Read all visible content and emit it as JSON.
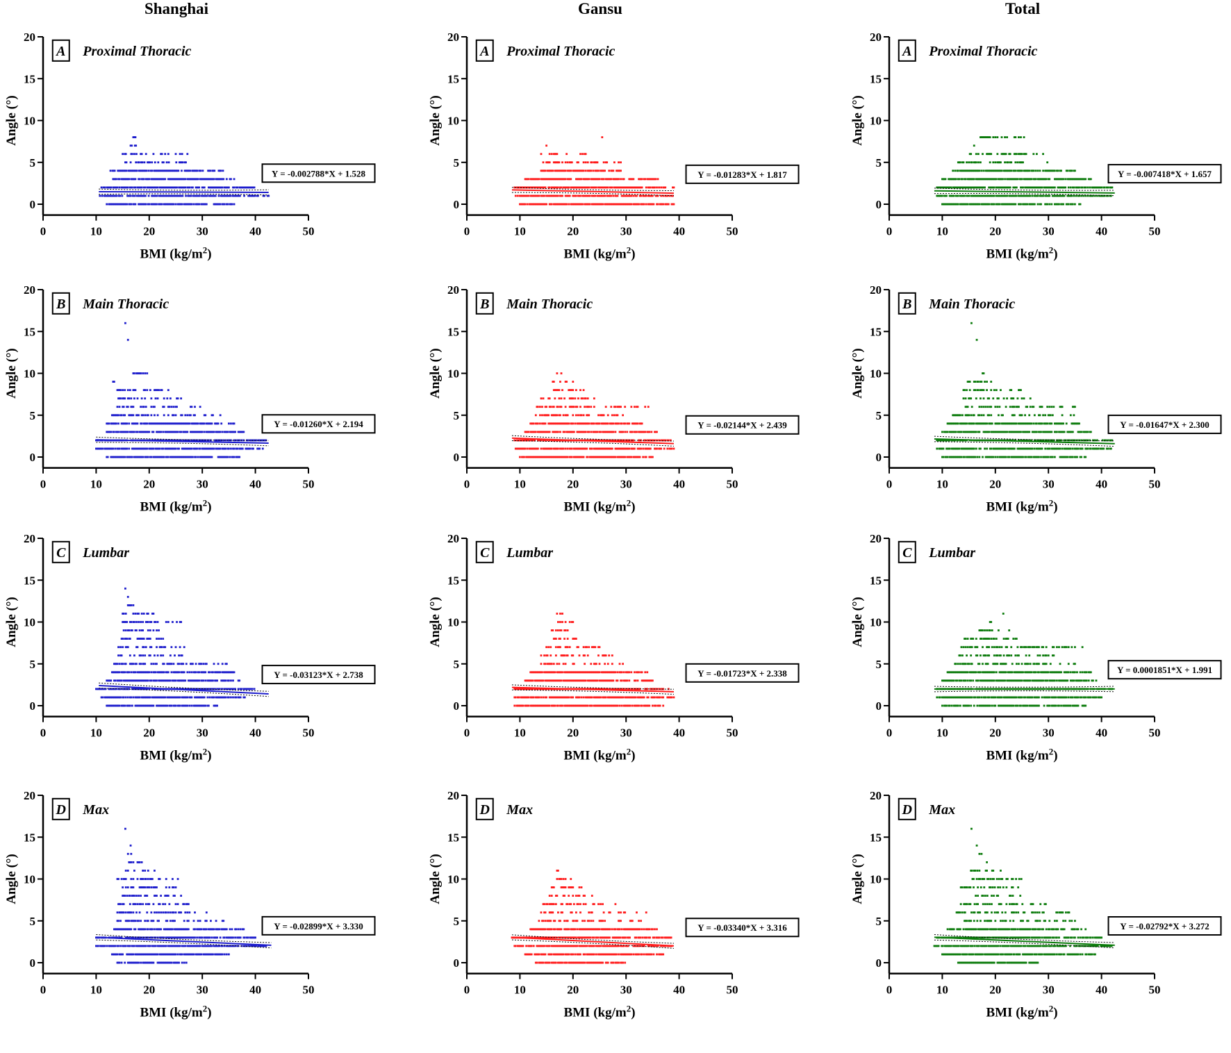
{
  "columns": [
    "Shanghai",
    "Gansu",
    "Total"
  ],
  "colors": {
    "Shanghai": "#1c1ccc",
    "Gansu": "#ff1a1a",
    "Total": "#0a7a0a"
  },
  "chart_data": [
    {
      "type": "scatter",
      "column": "Shanghai",
      "letter": "A",
      "title": "Proximal Thoracic",
      "xlabel": "BMI (kg/m2)",
      "ylabel": "Angle (°)",
      "xlim": [
        0,
        50
      ],
      "ylim": [
        0,
        20
      ],
      "xticks": [
        "0",
        "10",
        "20",
        "30",
        "40",
        "50"
      ],
      "yticks": [
        "0",
        "5",
        "10",
        "15",
        "20"
      ],
      "equation": "Y = -0.002788*X + 1.528",
      "slope": -0.002788,
      "intercept": 1.528,
      "fit_x": [
        10.5,
        42.5
      ],
      "point_bands": [
        [
          0,
          12,
          36
        ],
        [
          1,
          10.5,
          42.5
        ],
        [
          2,
          11,
          40
        ],
        [
          3,
          13,
          36
        ],
        [
          4,
          12.5,
          34
        ],
        [
          5,
          15.5,
          27
        ],
        [
          6,
          15,
          28
        ],
        [
          7,
          16.5,
          17.5
        ],
        [
          8,
          17,
          17.5
        ]
      ]
    },
    {
      "type": "scatter",
      "column": "Shanghai",
      "letter": "B",
      "title": "Main Thoracic",
      "xlabel": "BMI (kg/m2)",
      "ylabel": "Angle (°)",
      "xlim": [
        0,
        50
      ],
      "ylim": [
        0,
        20
      ],
      "xticks": [
        "0",
        "10",
        "20",
        "30",
        "40",
        "50"
      ],
      "yticks": [
        "0",
        "5",
        "10",
        "15",
        "20"
      ],
      "equation": "Y = -0.01260*X + 2.194",
      "slope": -0.0126,
      "intercept": 2.194,
      "fit_x": [
        10,
        42.5
      ],
      "point_bands": [
        [
          0,
          12,
          37
        ],
        [
          1,
          10,
          42
        ],
        [
          2,
          10,
          42
        ],
        [
          3,
          12,
          38
        ],
        [
          4,
          12,
          36
        ],
        [
          5,
          13,
          34
        ],
        [
          6,
          14,
          32
        ],
        [
          7,
          14,
          27
        ],
        [
          8,
          14,
          24
        ],
        [
          9,
          13,
          14
        ],
        [
          10,
          17,
          20
        ],
        [
          14,
          16,
          16
        ],
        [
          16,
          15.5,
          15.5
        ]
      ]
    },
    {
      "type": "scatter",
      "column": "Shanghai",
      "letter": "C",
      "title": "Lumbar",
      "xlabel": "BMI (kg/m2)",
      "ylabel": "Angle (°)",
      "xlim": [
        0,
        50
      ],
      "ylim": [
        0,
        20
      ],
      "xticks": [
        "0",
        "10",
        "20",
        "30",
        "40",
        "50"
      ],
      "yticks": [
        "0",
        "5",
        "10",
        "15",
        "20"
      ],
      "equation": "Y = -0.03123*X + 2.738",
      "slope": -0.03123,
      "intercept": 2.738,
      "fit_x": [
        10.5,
        42.5
      ],
      "point_bands": [
        [
          0,
          12,
          33
        ],
        [
          1,
          11,
          38
        ],
        [
          2,
          10,
          40
        ],
        [
          3,
          12,
          37
        ],
        [
          4,
          13,
          36
        ],
        [
          5,
          13,
          35
        ],
        [
          6,
          14,
          28
        ],
        [
          7,
          14,
          27
        ],
        [
          8,
          14,
          26
        ],
        [
          9,
          15,
          22
        ],
        [
          10,
          15,
          26
        ],
        [
          11,
          15,
          21
        ],
        [
          12,
          16,
          17
        ],
        [
          13,
          16,
          17
        ],
        [
          14,
          15.5,
          15.5
        ]
      ]
    },
    {
      "type": "scatter",
      "column": "Shanghai",
      "letter": "D",
      "title": "Max",
      "xlabel": "BMI (kg/m2)",
      "ylabel": "Angle (°)",
      "xlim": [
        0,
        50
      ],
      "ylim": [
        0,
        20
      ],
      "xticks": [
        "0",
        "10",
        "20",
        "30",
        "40",
        "50"
      ],
      "yticks": [
        "0",
        "5",
        "10",
        "15",
        "20"
      ],
      "equation": "Y = -0.02899*X + 3.330",
      "slope": -0.02899,
      "intercept": 3.33,
      "fit_x": [
        10,
        43
      ],
      "point_bands": [
        [
          0,
          14,
          27
        ],
        [
          1,
          13,
          35
        ],
        [
          2,
          10,
          42
        ],
        [
          3,
          10,
          40
        ],
        [
          4,
          13,
          38
        ],
        [
          5,
          14,
          34
        ],
        [
          6,
          14,
          31
        ],
        [
          7,
          14,
          28
        ],
        [
          8,
          15,
          26
        ],
        [
          9,
          14,
          25
        ],
        [
          10,
          14,
          26
        ],
        [
          11,
          15,
          21
        ],
        [
          12,
          16,
          19
        ],
        [
          13,
          16,
          17
        ],
        [
          14,
          16.5,
          16.5
        ],
        [
          16,
          15.5,
          15.5
        ]
      ]
    },
    {
      "type": "scatter",
      "column": "Gansu",
      "letter": "A",
      "title": "Proximal Thoracic",
      "xlabel": "BMI (kg/m2)",
      "ylabel": "Angle (°)",
      "xlim": [
        0,
        50
      ],
      "ylim": [
        0,
        20
      ],
      "xticks": [
        "0",
        "10",
        "20",
        "30",
        "40",
        "50"
      ],
      "yticks": [
        "0",
        "5",
        "10",
        "15",
        "20"
      ],
      "equation": "Y = -0.01283*X + 1.817",
      "slope": -0.01283,
      "intercept": 1.817,
      "fit_x": [
        8.5,
        39
      ],
      "point_bands": [
        [
          0,
          10,
          39
        ],
        [
          1,
          9,
          39
        ],
        [
          2,
          9,
          39
        ],
        [
          3,
          11,
          36
        ],
        [
          4,
          14,
          29
        ],
        [
          5,
          14,
          29
        ],
        [
          6,
          14,
          23
        ],
        [
          7,
          15,
          15
        ],
        [
          8,
          25.5,
          25.5
        ]
      ]
    },
    {
      "type": "scatter",
      "column": "Gansu",
      "letter": "B",
      "title": "Main Thoracic",
      "xlabel": "BMI (kg/m2)",
      "ylabel": "Angle (°)",
      "xlim": [
        0,
        50
      ],
      "ylim": [
        0,
        20
      ],
      "xticks": [
        "0",
        "10",
        "20",
        "30",
        "40",
        "50"
      ],
      "yticks": [
        "0",
        "5",
        "10",
        "15",
        "20"
      ],
      "equation": "Y = -0.02144*X + 2.439",
      "slope": -0.02144,
      "intercept": 2.439,
      "fit_x": [
        8.5,
        39
      ],
      "point_bands": [
        [
          0,
          10,
          35
        ],
        [
          1,
          9,
          39
        ],
        [
          2,
          9,
          39
        ],
        [
          3,
          11,
          36
        ],
        [
          4,
          12,
          33
        ],
        [
          5,
          13,
          30
        ],
        [
          6,
          13,
          35
        ],
        [
          7,
          14,
          24
        ],
        [
          8,
          16,
          22
        ],
        [
          9,
          16,
          20
        ],
        [
          10,
          17,
          19
        ]
      ]
    },
    {
      "type": "scatter",
      "column": "Gansu",
      "letter": "C",
      "title": "Lumbar",
      "xlabel": "BMI (kg/m2)",
      "ylabel": "Angle (°)",
      "xlim": [
        0,
        50
      ],
      "ylim": [
        0,
        20
      ],
      "xticks": [
        "0",
        "10",
        "20",
        "30",
        "40",
        "50"
      ],
      "yticks": [
        "0",
        "5",
        "10",
        "15",
        "20"
      ],
      "equation": "Y = -0.01723*X + 2.338",
      "slope": -0.01723,
      "intercept": 2.338,
      "fit_x": [
        8.5,
        39
      ],
      "point_bands": [
        [
          0,
          9,
          37
        ],
        [
          1,
          9,
          39
        ],
        [
          2,
          9,
          38
        ],
        [
          3,
          11,
          35
        ],
        [
          4,
          12,
          34
        ],
        [
          5,
          13,
          30
        ],
        [
          6,
          14,
          28
        ],
        [
          7,
          15,
          26
        ],
        [
          8,
          16,
          21
        ],
        [
          9,
          16,
          19
        ],
        [
          10,
          17,
          20
        ],
        [
          11,
          17,
          18
        ]
      ]
    },
    {
      "type": "scatter",
      "column": "Gansu",
      "letter": "D",
      "title": "Max",
      "xlabel": "BMI (kg/m2)",
      "ylabel": "Angle (°)",
      "xlim": [
        0,
        50
      ],
      "ylim": [
        0,
        20
      ],
      "xticks": [
        "0",
        "10",
        "20",
        "30",
        "40",
        "50"
      ],
      "yticks": [
        "0",
        "5",
        "10",
        "15",
        "20"
      ],
      "equation": "Y = -0.03340*X + 3.316",
      "slope": -0.0334,
      "intercept": 3.316,
      "fit_x": [
        8.5,
        39
      ],
      "point_bands": [
        [
          0,
          13,
          30
        ],
        [
          1,
          11,
          37
        ],
        [
          2,
          9,
          39
        ],
        [
          3,
          8.5,
          39
        ],
        [
          4,
          12,
          36
        ],
        [
          5,
          13,
          33
        ],
        [
          6,
          14,
          35
        ],
        [
          7,
          14,
          28
        ],
        [
          8,
          15,
          24
        ],
        [
          9,
          16,
          22
        ],
        [
          10,
          17,
          20
        ],
        [
          11,
          17,
          18
        ]
      ]
    },
    {
      "type": "scatter",
      "column": "Total",
      "letter": "A",
      "title": "Proximal Thoracic",
      "xlabel": "BMI (kg/m2)",
      "ylabel": "Angle (°)",
      "xlim": [
        0,
        50
      ],
      "ylim": [
        0,
        20
      ],
      "xticks": [
        "0",
        "10",
        "20",
        "30",
        "40",
        "50"
      ],
      "yticks": [
        "0",
        "5",
        "10",
        "15",
        "20"
      ],
      "equation": "Y = -0.007418*X + 1.657",
      "slope": -0.007418,
      "intercept": 1.657,
      "fit_x": [
        8.5,
        42.5
      ],
      "point_bands": [
        [
          0,
          10,
          36
        ],
        [
          1,
          9,
          42
        ],
        [
          2,
          9,
          42
        ],
        [
          3,
          10,
          38
        ],
        [
          4,
          12,
          35
        ],
        [
          5,
          13,
          30
        ],
        [
          6,
          15,
          29
        ],
        [
          7,
          16,
          17
        ],
        [
          8,
          17,
          25.5
        ]
      ]
    },
    {
      "type": "scatter",
      "column": "Total",
      "letter": "B",
      "title": "Main Thoracic",
      "xlabel": "BMI (kg/m2)",
      "ylabel": "Angle (°)",
      "xlim": [
        0,
        50
      ],
      "ylim": [
        0,
        20
      ],
      "xticks": [
        "0",
        "10",
        "20",
        "30",
        "40",
        "50"
      ],
      "yticks": [
        "0",
        "5",
        "10",
        "15",
        "20"
      ],
      "equation": "Y = -0.01647*X + 2.300",
      "slope": -0.01647,
      "intercept": 2.3,
      "fit_x": [
        8.5,
        42.5
      ],
      "point_bands": [
        [
          0,
          10,
          37
        ],
        [
          1,
          9,
          42
        ],
        [
          2,
          9,
          42
        ],
        [
          3,
          10,
          38
        ],
        [
          4,
          11,
          36
        ],
        [
          5,
          12,
          35
        ],
        [
          6,
          14,
          35
        ],
        [
          7,
          14,
          27
        ],
        [
          8,
          14,
          25
        ],
        [
          9,
          14,
          20
        ],
        [
          10,
          17,
          19
        ],
        [
          14,
          16.5,
          16.5
        ],
        [
          16,
          15.5,
          15.5
        ]
      ]
    },
    {
      "type": "scatter",
      "column": "Total",
      "letter": "C",
      "title": "Lumbar",
      "xlabel": "BMI (kg/m2)",
      "ylabel": "Angle (°)",
      "xlim": [
        0,
        50
      ],
      "ylim": [
        0,
        20
      ],
      "xticks": [
        "0",
        "10",
        "20",
        "30",
        "40",
        "50"
      ],
      "yticks": [
        "0",
        "5",
        "10",
        "15",
        "20"
      ],
      "equation": "Y = 0.0001851*X + 1.991",
      "slope": 0.0001851,
      "intercept": 1.991,
      "fit_x": [
        8.5,
        42.5
      ],
      "point_bands": [
        [
          0,
          10,
          37
        ],
        [
          1,
          9,
          40
        ],
        [
          2,
          9,
          42
        ],
        [
          3,
          10,
          39
        ],
        [
          4,
          11,
          38
        ],
        [
          5,
          12,
          35
        ],
        [
          6,
          13,
          32
        ],
        [
          7,
          13,
          37
        ],
        [
          8,
          14,
          24
        ],
        [
          9,
          17,
          23
        ],
        [
          10,
          19,
          21
        ],
        [
          11,
          21.5,
          21.5
        ]
      ]
    },
    {
      "type": "scatter",
      "column": "Total",
      "letter": "D",
      "title": "Max",
      "xlabel": "BMI (kg/m2)",
      "ylabel": "Angle (°)",
      "xlim": [
        0,
        50
      ],
      "ylim": [
        0,
        20
      ],
      "xticks": [
        "0",
        "10",
        "20",
        "30",
        "40",
        "50"
      ],
      "yticks": [
        "0",
        "5",
        "10",
        "15",
        "20"
      ],
      "equation": "Y = -0.02792*X + 3.272",
      "slope": -0.02792,
      "intercept": 3.272,
      "fit_x": [
        8.5,
        42.5
      ],
      "point_bands": [
        [
          0,
          13,
          28
        ],
        [
          1,
          10,
          39
        ],
        [
          2,
          8.5,
          42.5
        ],
        [
          3,
          9,
          40
        ],
        [
          4,
          11,
          37
        ],
        [
          5,
          14,
          35
        ],
        [
          6,
          12.5,
          35
        ],
        [
          7,
          13.5,
          29.5
        ],
        [
          8,
          15.5,
          25.5
        ],
        [
          9,
          13.5,
          25.5
        ],
        [
          10,
          14.5,
          25.5
        ],
        [
          11,
          15,
          21
        ],
        [
          12,
          17,
          18.5
        ],
        [
          13,
          17,
          17.5
        ],
        [
          14,
          16.5,
          16.5
        ],
        [
          16,
          15.5,
          15.5
        ]
      ]
    }
  ]
}
